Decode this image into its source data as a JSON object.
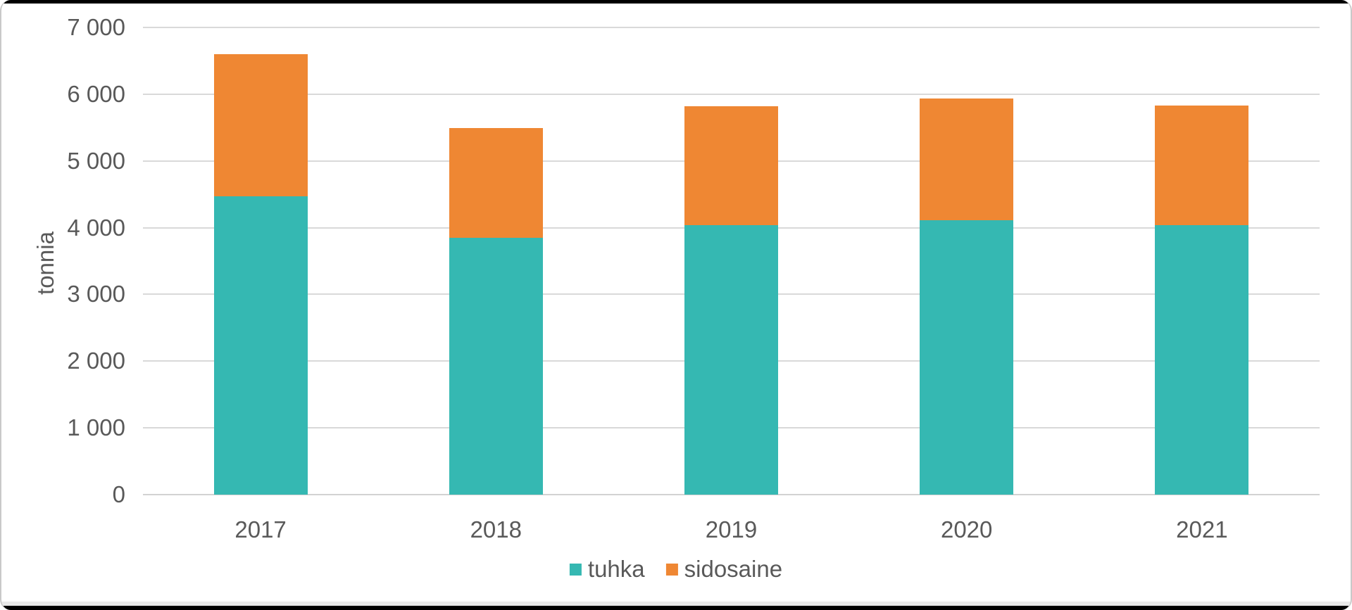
{
  "chart_data": {
    "type": "bar",
    "stacked": true,
    "title": "",
    "xlabel": "",
    "ylabel": "tonnia",
    "categories": [
      "2017",
      "2018",
      "2019",
      "2020",
      "2021"
    ],
    "series": [
      {
        "name": "tuhka",
        "color": "#35B8B2",
        "values": [
          4470,
          3850,
          4040,
          4110,
          4040
        ]
      },
      {
        "name": "sidosaine",
        "color": "#EF8733",
        "values": [
          2130,
          1640,
          1780,
          1830,
          1790
        ]
      }
    ],
    "totals": [
      6600,
      5490,
      5820,
      5940,
      5830
    ],
    "ylim": [
      0,
      7000
    ],
    "ytick_step": 1000,
    "ytick_labels": [
      "0",
      "1 000",
      "2 000",
      "3 000",
      "4 000",
      "5 000",
      "6 000",
      "7 000"
    ],
    "grid": true,
    "legend_position": "bottom"
  },
  "colors": {
    "grid": "#d9d9d9",
    "axis_text": "#595959",
    "frame_bar": "#000000",
    "frame_side": "#c9c9c9"
  }
}
